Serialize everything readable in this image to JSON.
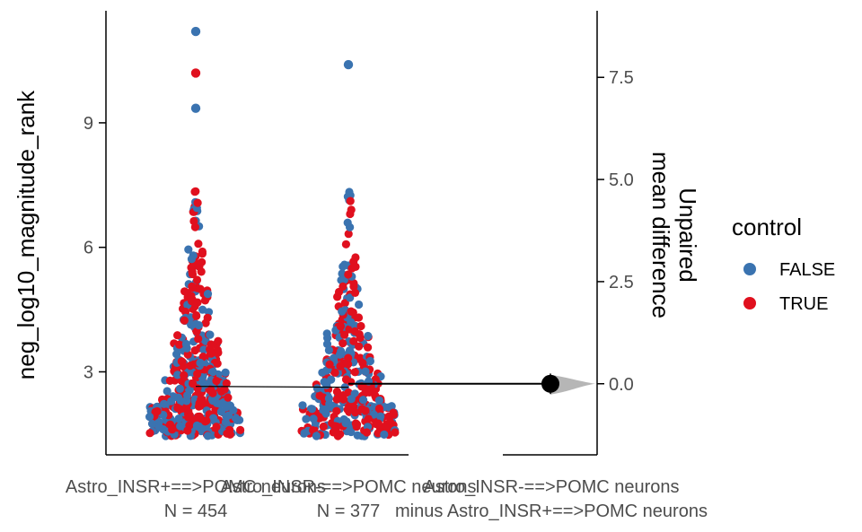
{
  "chart_data": {
    "type": "scatter",
    "subtype": "estimation-plot-swarm",
    "left_axis": {
      "label": "neg_log10_magnitude_rank",
      "ticks": [
        3,
        6,
        9
      ],
      "ylim": [
        1.0,
        11.7
      ]
    },
    "right_axis": {
      "label_line1": "Unpaired",
      "label_line2": "mean difference",
      "ticks": [
        0.0,
        2.5,
        5.0,
        7.5
      ],
      "tick_labels": [
        "0.0",
        "2.5",
        "5.0",
        "7.5"
      ],
      "ylim": [
        -1.74,
        9.13
      ]
    },
    "groups": [
      {
        "name": "Astro_INSR+==>POMC neurons",
        "n_label": "N = 454"
      },
      {
        "name": "Astro_INSR-==>POMC neurons",
        "n_label": "N = 377"
      }
    ],
    "delta_label_line1": "Astro_INSR-==>POMC neurons",
    "delta_label_line2": "minus Astro_INSR+==>POMC neurons",
    "delta": {
      "mean_difference": 0.0,
      "ci": [
        -0.25,
        0.25
      ]
    },
    "group_means": [
      2.65,
      2.65
    ],
    "legend": {
      "title": "control",
      "entries": [
        {
          "label": "FALSE",
          "color": "#3a73b0"
        },
        {
          "label": "TRUE",
          "color": "#e0101e"
        }
      ],
      "placement": "right"
    },
    "outliers": [
      {
        "group": 0,
        "y": 11.2,
        "control": "FALSE"
      },
      {
        "group": 0,
        "y": 10.2,
        "control": "TRUE"
      },
      {
        "group": 0,
        "y": 9.35,
        "control": "FALSE"
      },
      {
        "group": 1,
        "y": 10.4,
        "control": "FALSE"
      }
    ],
    "grid": false
  }
}
